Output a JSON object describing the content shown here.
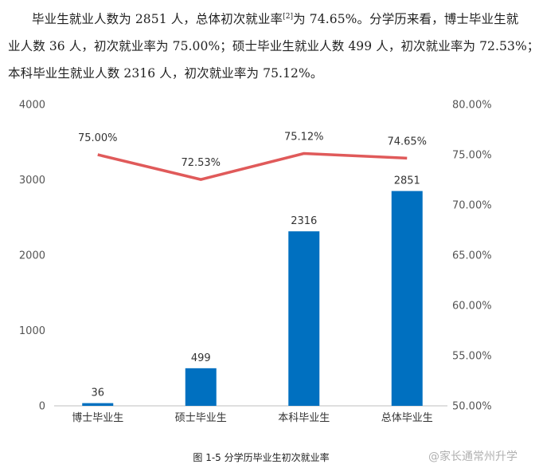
{
  "paragraph": {
    "line1_before_ref": "毕业生就业人数为 2851 人，总体初次就业率",
    "ref": "[2]",
    "line1_after_ref": "为 74.65%。分学历来看，博士毕业生就",
    "line2": "业人数 36 人，初次就业率为 75.00%；硕士毕业生就业人数 499 人，初次就业率为 72.53%；",
    "line3": "本科毕业生就业人数 2316 人，初次就业率为 75.12%。"
  },
  "caption": "图 1-5 分学历毕业生初次就业率",
  "watermark": "@家长通常州升学",
  "colors": {
    "bar": "#0070C0",
    "line": "#E05A5A"
  },
  "chart_data": {
    "type": "bar",
    "categories": [
      "博士毕业生",
      "硕士毕业生",
      "本科毕业生",
      "总体毕业生"
    ],
    "series": [
      {
        "values": [
          36,
          499,
          2316,
          2851
        ],
        "axis": "left",
        "kind": "bar",
        "labels": [
          "36",
          "499",
          "2316",
          "2851"
        ]
      },
      {
        "values": [
          75.0,
          72.53,
          75.12,
          74.65
        ],
        "axis": "right",
        "kind": "line",
        "labels": [
          "75.00%",
          "72.53%",
          "75.12%",
          "74.65%"
        ]
      }
    ],
    "ylim": [
      0,
      4000
    ],
    "y_ticks": [
      "0",
      "1000",
      "2000",
      "3000",
      "4000"
    ],
    "y2lim": [
      50,
      80
    ],
    "y2_ticks": [
      "50.00%",
      "55.00%",
      "60.00%",
      "65.00%",
      "70.00%",
      "75.00%",
      "80.00%"
    ],
    "grid": false,
    "legend": "none"
  }
}
